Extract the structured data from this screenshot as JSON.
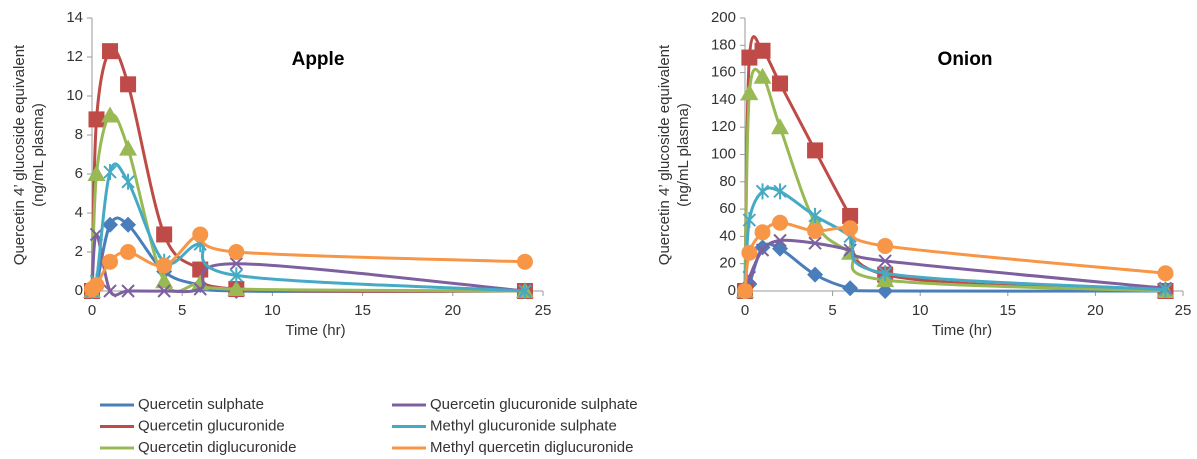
{
  "chart_data": [
    {
      "type": "line",
      "title": "Apple",
      "x_label": "Time (hr)",
      "y_label": [
        "Quercetin 4’ glucoside equivalent",
        "(ng/mL plasma)"
      ],
      "x": [
        0,
        0.25,
        1,
        2,
        4,
        6,
        8,
        24
      ],
      "xlim": [
        0,
        25
      ],
      "xticks": [
        0,
        5,
        10,
        15,
        20,
        25
      ],
      "ylim": [
        0,
        14
      ],
      "yticks": [
        0,
        2,
        4,
        6,
        8,
        10,
        12,
        14
      ],
      "series": [
        {
          "name": "Quercetin sulphate",
          "color": "#4a7ebb",
          "marker": "diamond",
          "values": [
            0,
            0.3,
            3.4,
            3.4,
            1.0,
            0.3,
            0,
            0
          ]
        },
        {
          "name": "Quercetin glucuronide",
          "color": "#be4b48",
          "marker": "square",
          "values": [
            0,
            8.8,
            12.3,
            10.6,
            2.9,
            1.1,
            0.1,
            0
          ]
        },
        {
          "name": "Quercetin diglucuronide",
          "color": "#98b954",
          "marker": "triangle",
          "values": [
            0,
            6.0,
            9.0,
            7.3,
            0.5,
            0.4,
            0.1,
            0
          ]
        },
        {
          "name": "Quercetin glucuronide sulphate",
          "color": "#7d60a0",
          "marker": "x",
          "values": [
            0,
            2.9,
            0,
            0,
            0,
            0.1,
            1.4,
            0
          ]
        },
        {
          "name": "Methyl glucuronide sulphate",
          "color": "#46aac5",
          "marker": "asterisk",
          "values": [
            0,
            0.5,
            6.1,
            5.6,
            1.5,
            2.4,
            0.8,
            0
          ]
        },
        {
          "name": "Methyl quercetin diglucuronide",
          "color": "#f79646",
          "marker": "circle",
          "values": [
            0.1,
            0.3,
            1.5,
            2.0,
            1.3,
            2.9,
            2.0,
            1.5
          ]
        }
      ]
    },
    {
      "type": "line",
      "title": "Onion",
      "x_label": "Time (hr)",
      "y_label": [
        "Quercetin 4’ glucoside equivalent",
        "(ng/mL plasma)"
      ],
      "x": [
        0,
        0.25,
        1,
        2,
        4,
        6,
        8,
        24
      ],
      "xlim": [
        0,
        25
      ],
      "xticks": [
        0,
        5,
        10,
        15,
        20,
        25
      ],
      "ylim": [
        0,
        200
      ],
      "yticks": [
        0,
        20,
        40,
        60,
        80,
        100,
        120,
        140,
        160,
        180,
        200
      ],
      "series": [
        {
          "color": "#4a7ebb",
          "marker": "diamond",
          "values": [
            0,
            5,
            32,
            31,
            12,
            2,
            0,
            0
          ]
        },
        {
          "color": "#be4b48",
          "marker": "square",
          "values": [
            0,
            171,
            176,
            152,
            103,
            55,
            12,
            0
          ]
        },
        {
          "color": "#98b954",
          "marker": "triangle",
          "values": [
            0,
            145,
            157,
            120,
            50,
            28,
            8,
            0
          ]
        },
        {
          "color": "#7d60a0",
          "marker": "x",
          "values": [
            0,
            10,
            30,
            37,
            35,
            30,
            22,
            2
          ]
        },
        {
          "color": "#46aac5",
          "marker": "asterisk",
          "values": [
            0,
            52,
            73,
            73,
            55,
            40,
            13,
            1
          ]
        },
        {
          "color": "#f79646",
          "marker": "circle",
          "values": [
            0,
            28,
            43,
            50,
            44,
            46,
            33,
            13
          ]
        }
      ]
    }
  ]
}
